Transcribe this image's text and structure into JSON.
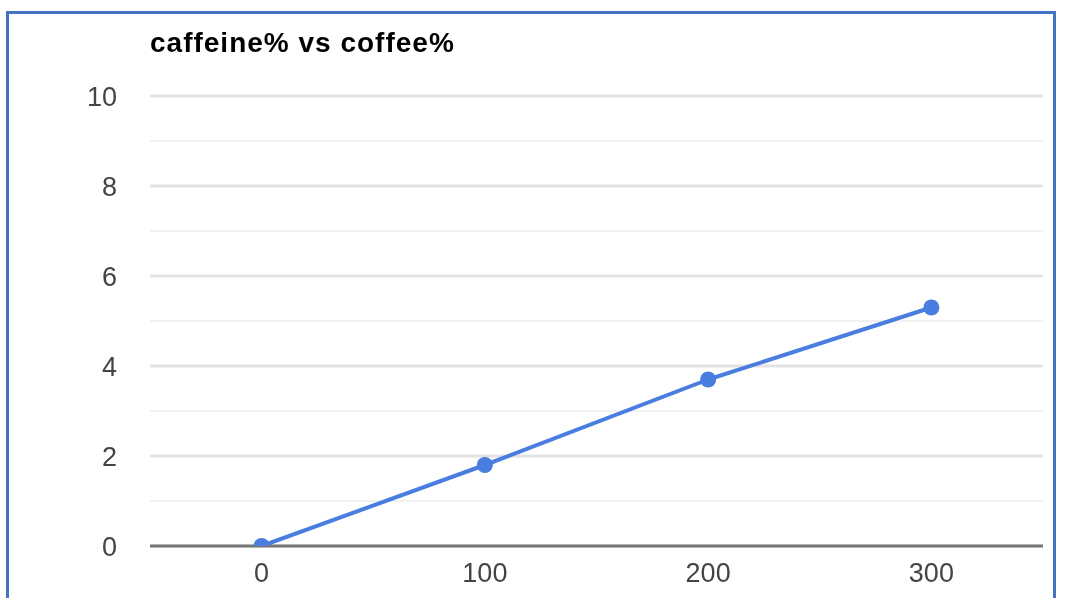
{
  "chart_data": {
    "type": "line",
    "title": "caffeine% vs coffee%",
    "categories": [
      "0",
      "100",
      "200",
      "300"
    ],
    "series": [
      {
        "color": "#4a7de0",
        "values": [
          0,
          1.8,
          3.7,
          5.3
        ]
      }
    ],
    "ylim": [
      0,
      10
    ],
    "yticks": [
      0,
      {
        "value": 1,
        "label": null
      },
      2,
      {
        "value": 3,
        "label": null
      },
      4,
      {
        "value": 5,
        "label": null
      },
      6,
      {
        "value": 7,
        "label": null
      },
      8,
      {
        "value": 9,
        "label": null
      },
      10
    ],
    "grid": "y",
    "marker": "circle",
    "line_style": "solid"
  }
}
